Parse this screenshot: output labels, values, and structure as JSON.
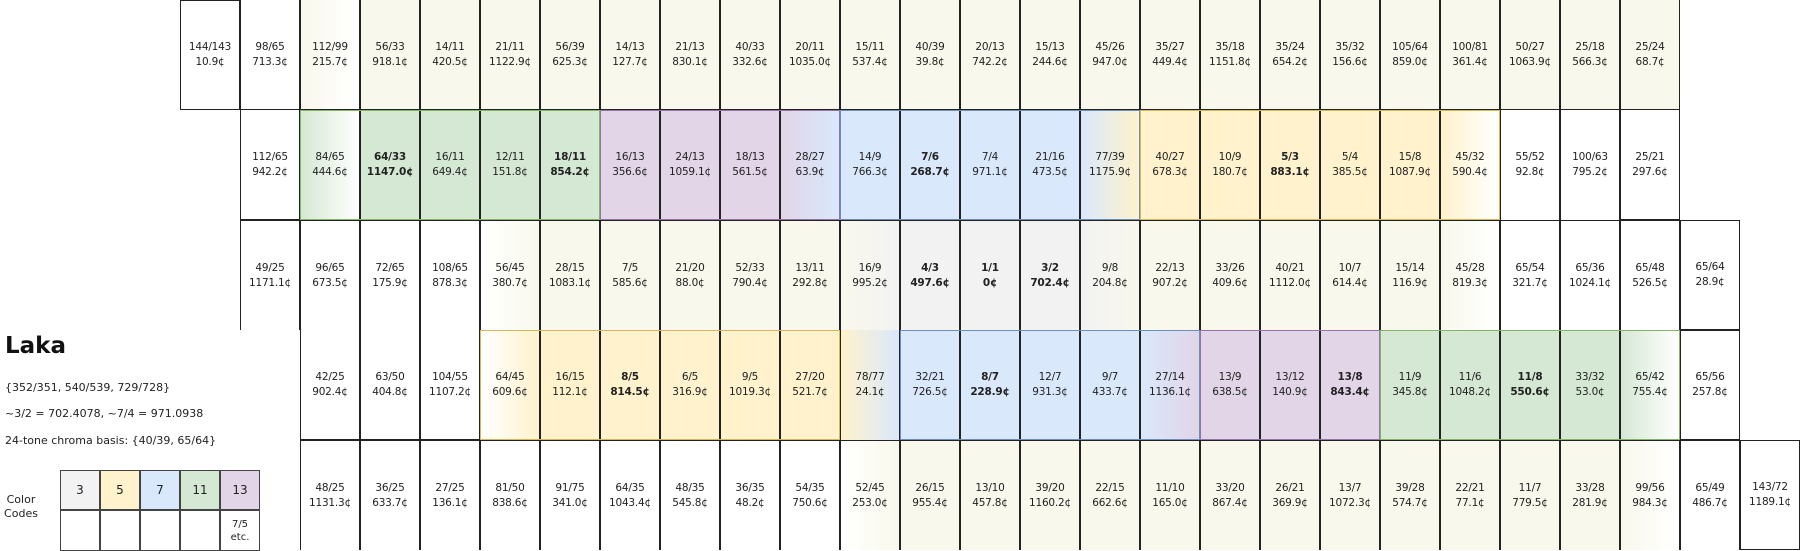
{
  "title": "Laka",
  "info_lines": [
    "{352/351, 540/539, 729/728}",
    "~3/2 = 702.4078, ~7/4 = 971.0938",
    "24-tone chroma basis: {40/39, 65/64}"
  ],
  "legend": {
    "label": "Color\nCodes",
    "codes": [
      {
        "label": "3",
        "color": "#f2f2f2"
      },
      {
        "label": "5",
        "color": "#fff2cc"
      },
      {
        "label": "7",
        "color": "#dae8fc"
      },
      {
        "label": "11",
        "color": "#d5e8d4"
      },
      {
        "label": "13",
        "color": "#e1d5e7"
      }
    ],
    "note": "7/5\netc."
  },
  "colors": {
    "3": "#f2f2f2",
    "5": "#fff2cc",
    "7": "#dae8fc",
    "11": "#d5e8d4",
    "13": "#e1d5e7",
    "pale": "#f9f8ec",
    "box_5": "#d6b656",
    "box_7": "#6c8ebf",
    "box_11": "#82b366",
    "box_13": "#9673a6"
  },
  "rows": [
    {
      "start": 0,
      "border": [
        0,
        1,
        1,
        1,
        1,
        1,
        1,
        1,
        1,
        1,
        1,
        1,
        1,
        1,
        1,
        1,
        1,
        1,
        1,
        1,
        1,
        1,
        1,
        1,
        1,
        1
      ],
      "cells": [
        [
          "144/143",
          "10.9¢"
        ],
        [
          "98/65",
          "713.3¢"
        ],
        [
          "112/99",
          "215.7¢"
        ],
        [
          "56/33",
          "918.1¢"
        ],
        [
          "14/11",
          "420.5¢"
        ],
        [
          "21/11",
          "1122.9¢"
        ],
        [
          "56/39",
          "625.3¢"
        ],
        [
          "14/13",
          "127.7¢"
        ],
        [
          "21/13",
          "830.1¢"
        ],
        [
          "40/33",
          "332.6¢"
        ],
        [
          "20/11",
          "1035.0¢"
        ],
        [
          "15/11",
          "537.4¢"
        ],
        [
          "40/39",
          "39.8¢"
        ],
        [
          "20/13",
          "742.2¢"
        ],
        [
          "15/13",
          "244.6¢"
        ],
        [
          "45/26",
          "947.0¢"
        ],
        [
          "35/27",
          "449.4¢"
        ],
        [
          "35/18",
          "1151.8¢"
        ],
        [
          "35/24",
          "654.2¢"
        ],
        [
          "35/32",
          "156.6¢"
        ],
        [
          "105/64",
          "859.0¢"
        ],
        [
          "100/81",
          "361.4¢"
        ],
        [
          "50/27",
          "1063.9¢"
        ],
        [
          "25/18",
          "566.3¢"
        ],
        [
          "25/24",
          "68.7¢"
        ]
      ],
      "bold": [],
      "bg": [
        "",
        "",
        "g:pale",
        "pale",
        "pale",
        "pale",
        "pale",
        "pale",
        "pale",
        "pale",
        "pale",
        "pale",
        "pale",
        "pale",
        "pale",
        "pale",
        "pale",
        "pale",
        "pale",
        "pale",
        "pale",
        "pale",
        "pale",
        "pale",
        "pale"
      ]
    },
    {
      "start": 1,
      "border": [
        1,
        3,
        3,
        3,
        3,
        3,
        3,
        3,
        3,
        3,
        3,
        3,
        3,
        3,
        3,
        3,
        3,
        3,
        3,
        3,
        3,
        3,
        3,
        1,
        1
      ],
      "cells": [
        [
          "112/65",
          "942.2¢"
        ],
        [
          "84/65",
          "444.6¢"
        ],
        [
          "64/33",
          "1147.0¢"
        ],
        [
          "16/11",
          "649.4¢"
        ],
        [
          "12/11",
          "151.8¢"
        ],
        [
          "18/11",
          "854.2¢"
        ],
        [
          "16/13",
          "356.6¢"
        ],
        [
          "24/13",
          "1059.1¢"
        ],
        [
          "18/13",
          "561.5¢"
        ],
        [
          "28/27",
          "63.9¢"
        ],
        [
          "14/9",
          "766.3¢"
        ],
        [
          "7/6",
          "268.7¢"
        ],
        [
          "7/4",
          "971.1¢"
        ],
        [
          "21/16",
          "473.5¢"
        ],
        [
          "77/39",
          "1175.9¢"
        ],
        [
          "40/27",
          "678.3¢"
        ],
        [
          "10/9",
          "180.7¢"
        ],
        [
          "5/3",
          "883.1¢"
        ],
        [
          "5/4",
          "385.5¢"
        ],
        [
          "15/8",
          "1087.9¢"
        ],
        [
          "45/32",
          "590.4¢"
        ],
        [
          "55/52",
          "92.8¢"
        ],
        [
          "100/63",
          "795.2¢"
        ],
        [
          "25/21",
          "297.6¢"
        ]
      ],
      "bold": [
        2,
        5,
        11,
        17
      ],
      "bg": [
        "",
        "g:11",
        "11",
        "11",
        "11",
        "11",
        "13",
        "13",
        "13",
        "g:13|7",
        "7",
        "7",
        "7",
        "7",
        "g:7|5",
        "5",
        "5",
        "5",
        "5",
        "5",
        "g:5|",
        "",
        "",
        ""
      ]
    },
    {
      "start": 1,
      "border": [
        2,
        2,
        2,
        2,
        2,
        2,
        2,
        2,
        2,
        2,
        2,
        2,
        2,
        2,
        2,
        2,
        2,
        2,
        2,
        2,
        2,
        2,
        2,
        2,
        0
      ],
      "cells": [
        [
          "49/25",
          "1171.1¢"
        ],
        [
          "96/65",
          "673.5¢"
        ],
        [
          "72/65",
          "175.9¢"
        ],
        [
          "108/65",
          "878.3¢"
        ],
        [
          "56/45",
          "380.7¢"
        ],
        [
          "28/15",
          "1083.1¢"
        ],
        [
          "7/5",
          "585.6¢"
        ],
        [
          "21/20",
          "88.0¢"
        ],
        [
          "52/33",
          "790.4¢"
        ],
        [
          "13/11",
          "292.8¢"
        ],
        [
          "16/9",
          "995.2¢"
        ],
        [
          "4/3",
          "497.6¢"
        ],
        [
          "1/1",
          "0¢"
        ],
        [
          "3/2",
          "702.4¢"
        ],
        [
          "9/8",
          "204.8¢"
        ],
        [
          "22/13",
          "907.2¢"
        ],
        [
          "33/26",
          "409.6¢"
        ],
        [
          "40/21",
          "1112.0¢"
        ],
        [
          "10/7",
          "614.4¢"
        ],
        [
          "15/14",
          "116.9¢"
        ],
        [
          "45/28",
          "819.3¢"
        ],
        [
          "65/54",
          "321.7¢"
        ],
        [
          "65/36",
          "1024.1¢"
        ],
        [
          "65/48",
          "526.5¢"
        ],
        [
          "65/64",
          "28.9¢"
        ]
      ],
      "bold": [
        11,
        12,
        13
      ],
      "bg": [
        "",
        "",
        "",
        "",
        "g:|pale",
        "pale",
        "pale",
        "pale",
        "pale",
        "pale",
        "g:pale|3",
        "3",
        "3",
        "3",
        "g:3|pale",
        "pale",
        "pale",
        "pale",
        "pale",
        "pale",
        "g:pale|",
        "",
        "",
        "",
        ""
      ]
    },
    {
      "start": 2,
      "border": [
        1,
        1,
        1,
        3,
        3,
        3,
        3,
        3,
        3,
        3,
        3,
        3,
        3,
        3,
        3,
        3,
        3,
        3,
        3,
        3,
        3,
        3,
        1
      ],
      "cells": [
        [
          "42/25",
          "902.4¢"
        ],
        [
          "63/50",
          "404.8¢"
        ],
        [
          "104/55",
          "1107.2¢"
        ],
        [
          "64/45",
          "609.6¢"
        ],
        [
          "16/15",
          "112.1¢"
        ],
        [
          "8/5",
          "814.5¢"
        ],
        [
          "6/5",
          "316.9¢"
        ],
        [
          "9/5",
          "1019.3¢"
        ],
        [
          "27/20",
          "521.7¢"
        ],
        [
          "78/77",
          "24.1¢"
        ],
        [
          "32/21",
          "726.5¢"
        ],
        [
          "8/7",
          "228.9¢"
        ],
        [
          "12/7",
          "931.3¢"
        ],
        [
          "9/7",
          "433.7¢"
        ],
        [
          "27/14",
          "1136.1¢"
        ],
        [
          "13/9",
          "638.5¢"
        ],
        [
          "13/12",
          "140.9¢"
        ],
        [
          "13/8",
          "843.4¢"
        ],
        [
          "11/9",
          "345.8¢"
        ],
        [
          "11/6",
          "1048.2¢"
        ],
        [
          "11/8",
          "550.6¢"
        ],
        [
          "33/32",
          "53.0¢"
        ],
        [
          "65/42",
          "755.4¢"
        ],
        [
          "65/56",
          "257.8¢"
        ]
      ],
      "bold": [
        5,
        11,
        17,
        20
      ],
      "bg": [
        "",
        "",
        "",
        "g:|5",
        "5",
        "5",
        "5",
        "5",
        "5",
        "g:5|7",
        "7",
        "7",
        "7",
        "7",
        "g:7|13",
        "13",
        "13",
        "13",
        "11",
        "11",
        "11",
        "11",
        "g:11|",
        ""
      ]
    },
    {
      "start": 2,
      "border": [
        2,
        2,
        2,
        2,
        2,
        2,
        2,
        2,
        2,
        2,
        2,
        2,
        2,
        2,
        2,
        2,
        2,
        2,
        2,
        2,
        2,
        2,
        2,
        2,
        0
      ],
      "cells": [
        [
          "48/25",
          "1131.3¢"
        ],
        [
          "36/25",
          "633.7¢"
        ],
        [
          "27/25",
          "136.1¢"
        ],
        [
          "81/50",
          "838.6¢"
        ],
        [
          "91/75",
          "341.0¢"
        ],
        [
          "64/35",
          "1043.4¢"
        ],
        [
          "48/35",
          "545.8¢"
        ],
        [
          "36/35",
          "48.2¢"
        ],
        [
          "54/35",
          "750.6¢"
        ],
        [
          "52/45",
          "253.0¢"
        ],
        [
          "26/15",
          "955.4¢"
        ],
        [
          "13/10",
          "457.8¢"
        ],
        [
          "39/20",
          "1160.2¢"
        ],
        [
          "22/15",
          "662.6¢"
        ],
        [
          "11/10",
          "165.0¢"
        ],
        [
          "33/20",
          "867.4¢"
        ],
        [
          "26/21",
          "369.9¢"
        ],
        [
          "13/7",
          "1072.3¢"
        ],
        [
          "39/28",
          "574.7¢"
        ],
        [
          "22/21",
          "77.1¢"
        ],
        [
          "11/7",
          "779.5¢"
        ],
        [
          "33/28",
          "281.9¢"
        ],
        [
          "99/56",
          "984.3¢"
        ],
        [
          "65/49",
          "486.7¢"
        ],
        [
          "143/72",
          "1189.1¢"
        ]
      ],
      "bold": [],
      "bg": [
        "",
        "",
        "",
        "",
        "",
        "",
        "",
        "",
        "",
        "g:|pale",
        "pale",
        "pale",
        "pale",
        "pale",
        "pale",
        "pale",
        "pale",
        "pale",
        "pale",
        "pale",
        "pale",
        "pale",
        "g:pale|",
        "",
        ""
      ]
    }
  ],
  "color_boxes": [
    {
      "row": 1,
      "from": 1,
      "to": 5,
      "color": "box_11"
    },
    {
      "row": 1,
      "from": 6,
      "to": 9,
      "color": "box_13"
    },
    {
      "row": 1,
      "from": 10,
      "to": 14,
      "color": "box_7"
    },
    {
      "row": 1,
      "from": 15,
      "to": 20,
      "color": "box_5"
    },
    {
      "row": 3,
      "from": 3,
      "to": 8,
      "color": "box_5"
    },
    {
      "row": 3,
      "from": 10,
      "to": 14,
      "color": "box_7"
    },
    {
      "row": 3,
      "from": 15,
      "to": 17,
      "color": "box_13"
    },
    {
      "row": 3,
      "from": 18,
      "to": 22,
      "color": "box_11"
    }
  ]
}
